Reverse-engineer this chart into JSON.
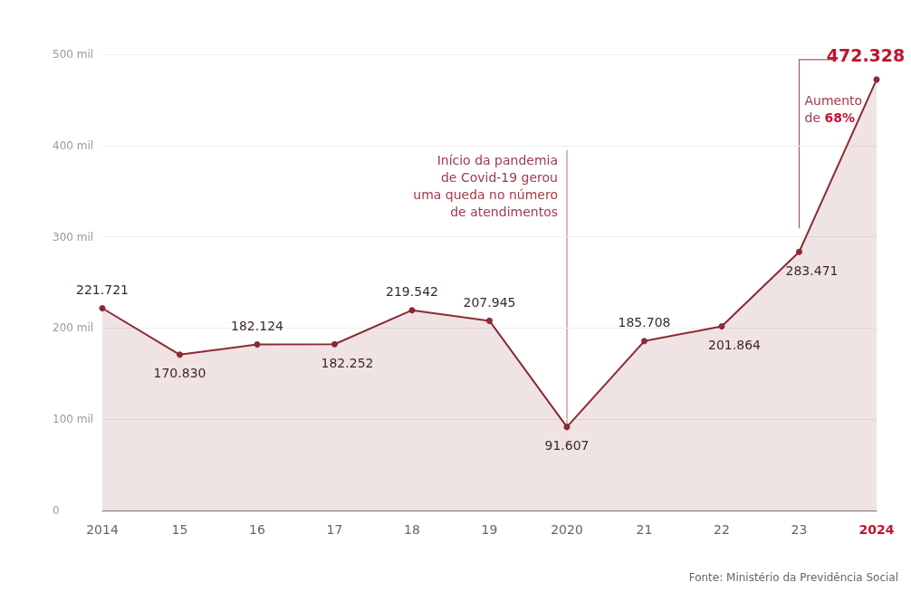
{
  "chart_data": {
    "type": "area",
    "categories": [
      "2014",
      "15",
      "16",
      "17",
      "18",
      "19",
      "2020",
      "21",
      "22",
      "23",
      "2024"
    ],
    "series": [
      {
        "color": "#8b2a32",
        "values": [
          221.721,
          170.83,
          182.124,
          182.252,
          219.542,
          207.945,
          91.607,
          185.708,
          201.864,
          283.471,
          472.328
        ],
        "value_labels": [
          "221.721",
          "170.830",
          "182.124",
          "182.252",
          "219.542",
          "207.945",
          "91.607",
          "185.708",
          "201.864",
          "283.471",
          "472.328"
        ]
      }
    ],
    "ylim": [
      0,
      500
    ],
    "yticks": [
      0,
      {
        "value": 100,
        "label": "100 mil"
      },
      {
        "value": 200,
        "label": "200 mil"
      },
      {
        "value": 300,
        "label": "300 mil"
      },
      {
        "value": 400,
        "label": "400 mil"
      },
      {
        "value": 500,
        "label": "500 mil"
      }
    ],
    "grid": "y",
    "marker": "circle",
    "annotations": [
      {
        "text": "Início da pandemia de Covid-19 gerou uma queda no número de atendimentos",
        "x": "2020",
        "y": 91.607
      },
      "Aumento de 68%",
      "Fonte: Ministério da Previdência Social"
    ]
  }
}
